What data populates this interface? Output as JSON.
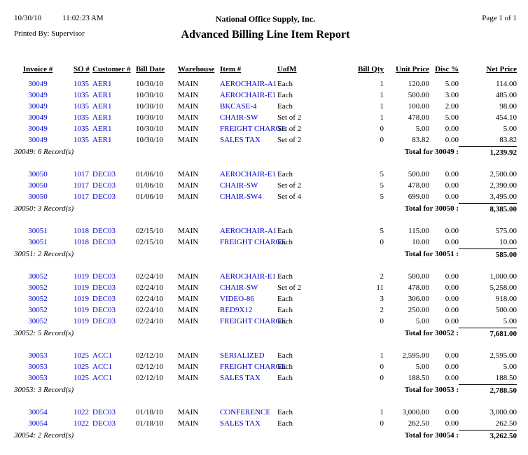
{
  "page_header": {
    "date": "10/30/10",
    "time": "11:02:23 AM",
    "company": "National Office Supply, Inc.",
    "page_info": "Page 1 of 1",
    "printed_by": "Printed By: Supervisor",
    "report_title": "Advanced Billing Line Item Report"
  },
  "table": {
    "columns": [
      "Invoice #",
      "SO #",
      "Customer #",
      "Bill Date",
      "Warehouse",
      "Item #",
      "UofM",
      "Bill Qty",
      "Unit Price",
      "Disc %",
      "Net Price"
    ]
  },
  "colors": {
    "value_blue": "#0000cc",
    "text_black": "#000000"
  },
  "groups": [
    {
      "invoice": "30049",
      "rows": [
        [
          "30049",
          "1035",
          "AER1",
          "10/30/10",
          "MAIN",
          "AEROCHAIR-A1",
          "Each",
          "1",
          "120.00",
          "5.00",
          "114.00"
        ],
        [
          "30049",
          "1035",
          "AER1",
          "10/30/10",
          "MAIN",
          "AEROCHAIR-E1",
          "Each",
          "1",
          "500.00",
          "3.00",
          "485.00"
        ],
        [
          "30049",
          "1035",
          "AER1",
          "10/30/10",
          "MAIN",
          "BKCASE-4",
          "Each",
          "1",
          "100.00",
          "2.00",
          "98.00"
        ],
        [
          "30049",
          "1035",
          "AER1",
          "10/30/10",
          "MAIN",
          "CHAIR-SW",
          "Set of 2",
          "1",
          "478.00",
          "5.00",
          "454.10"
        ],
        [
          "30049",
          "1035",
          "AER1",
          "10/30/10",
          "MAIN",
          "FREIGHT CHARGE",
          "Set of 2",
          "0",
          "5.00",
          "0.00",
          "5.00"
        ],
        [
          "30049",
          "1035",
          "AER1",
          "10/30/10",
          "MAIN",
          "SALES TAX",
          "Set of 2",
          "0",
          "83.82",
          "0.00",
          "83.82"
        ]
      ],
      "record_count": "30049: 6 Record(s)",
      "total_label": "Total for 30049 :",
      "total_amount": "1,239.92"
    },
    {
      "invoice": "30050",
      "rows": [
        [
          "30050",
          "1017",
          "DEC03",
          "01/06/10",
          "MAIN",
          "AEROCHAIR-E1",
          "Each",
          "5",
          "500.00",
          "0.00",
          "2,500.00"
        ],
        [
          "30050",
          "1017",
          "DEC03",
          "01/06/10",
          "MAIN",
          "CHAIR-SW",
          "Set of 2",
          "5",
          "478.00",
          "0.00",
          "2,390.00"
        ],
        [
          "30050",
          "1017",
          "DEC03",
          "01/06/10",
          "MAIN",
          "CHAIR-SW4",
          "Set of 4",
          "5",
          "699.00",
          "0.00",
          "3,495.00"
        ]
      ],
      "record_count": "30050: 3 Record(s)",
      "total_label": "Total for 30050 :",
      "total_amount": "8,385.00"
    },
    {
      "invoice": "30051",
      "rows": [
        [
          "30051",
          "1018",
          "DEC03",
          "02/15/10",
          "MAIN",
          "AEROCHAIR-A1",
          "Each",
          "5",
          "115.00",
          "0.00",
          "575.00"
        ],
        [
          "30051",
          "1018",
          "DEC03",
          "02/15/10",
          "MAIN",
          "FREIGHT CHARGE",
          "Each",
          "0",
          "10.00",
          "0.00",
          "10.00"
        ]
      ],
      "record_count": "30051: 2 Record(s)",
      "total_label": "Total for 30051 :",
      "total_amount": "585.00"
    },
    {
      "invoice": "30052",
      "rows": [
        [
          "30052",
          "1019",
          "DEC03",
          "02/24/10",
          "MAIN",
          "AEROCHAIR-E1",
          "Each",
          "2",
          "500.00",
          "0.00",
          "1,000.00"
        ],
        [
          "30052",
          "1019",
          "DEC03",
          "02/24/10",
          "MAIN",
          "CHAIR-SW",
          "Set of 2",
          "11",
          "478.00",
          "0.00",
          "5,258.00"
        ],
        [
          "30052",
          "1019",
          "DEC03",
          "02/24/10",
          "MAIN",
          "VIDEO-86",
          "Each",
          "3",
          "306.00",
          "0.00",
          "918.00"
        ],
        [
          "30052",
          "1019",
          "DEC03",
          "02/24/10",
          "MAIN",
          "RED9X12",
          "Each",
          "2",
          "250.00",
          "0.00",
          "500.00"
        ],
        [
          "30052",
          "1019",
          "DEC03",
          "02/24/10",
          "MAIN",
          "FREIGHT CHARGE",
          "Each",
          "0",
          "5.00",
          "0.00",
          "5.00"
        ]
      ],
      "record_count": "30052: 5 Record(s)",
      "total_label": "Total for 30052 :",
      "total_amount": "7,681.00"
    },
    {
      "invoice": "30053",
      "rows": [
        [
          "30053",
          "1025",
          "ACC1",
          "02/12/10",
          "MAIN",
          "SERIALIZED",
          "Each",
          "1",
          "2,595.00",
          "0.00",
          "2,595.00"
        ],
        [
          "30053",
          "1025",
          "ACC1",
          "02/12/10",
          "MAIN",
          "FREIGHT CHARGE",
          "Each",
          "0",
          "5.00",
          "0.00",
          "5.00"
        ],
        [
          "30053",
          "1025",
          "ACC1",
          "02/12/10",
          "MAIN",
          "SALES TAX",
          "Each",
          "0",
          "188.50",
          "0.00",
          "188.50"
        ]
      ],
      "record_count": "30053: 3 Record(s)",
      "total_label": "Total for 30053 :",
      "total_amount": "2,788.50"
    },
    {
      "invoice": "30054",
      "rows": [
        [
          "30054",
          "1022",
          "DEC03",
          "01/18/10",
          "MAIN",
          "CONFERENCE",
          "Each",
          "1",
          "3,000.00",
          "0.00",
          "3,000.00"
        ],
        [
          "30054",
          "1022",
          "DEC03",
          "01/18/10",
          "MAIN",
          "SALES TAX",
          "Each",
          "0",
          "262.50",
          "0.00",
          "262.50"
        ]
      ],
      "record_count": "30054: 2 Record(s)",
      "total_label": "Total for 30054 :",
      "total_amount": "3,262.50"
    }
  ]
}
